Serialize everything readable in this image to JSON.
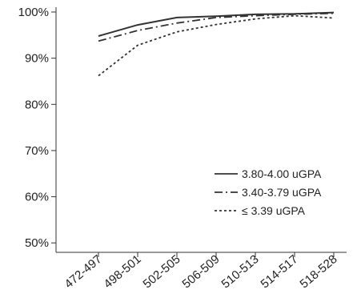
{
  "chart_data": {
    "type": "line",
    "title": "",
    "xlabel": "",
    "ylabel": "",
    "categories": [
      "472-497",
      "498-501",
      "502-505",
      "506-509",
      "510-513",
      "514-517",
      "518-528"
    ],
    "ylim": [
      0.49,
      1.0
    ],
    "yticks": [
      0.5,
      0.6,
      0.7,
      0.8,
      0.9,
      1.0
    ],
    "ytick_labels": [
      "50%",
      "60%",
      "70%",
      "80%",
      "90%",
      "100%"
    ],
    "grid": false,
    "legend_position": "right",
    "series": [
      {
        "name": "3.80-4.00 uGPA",
        "style": "solid",
        "color": "#333333",
        "values": [
          0.948,
          0.972,
          0.988,
          0.991,
          0.995,
          0.996,
          0.999
        ]
      },
      {
        "name": "3.40-3.79 uGPA",
        "style": "dash-dot",
        "color": "#333333",
        "values": [
          0.937,
          0.96,
          0.976,
          0.988,
          0.992,
          0.995,
          0.997
        ]
      },
      {
        "name": "≤ 3.39 uGPA",
        "style": "dotted",
        "color": "#333333",
        "values": [
          0.862,
          0.928,
          0.957,
          0.973,
          0.985,
          0.992,
          0.987
        ]
      }
    ]
  }
}
